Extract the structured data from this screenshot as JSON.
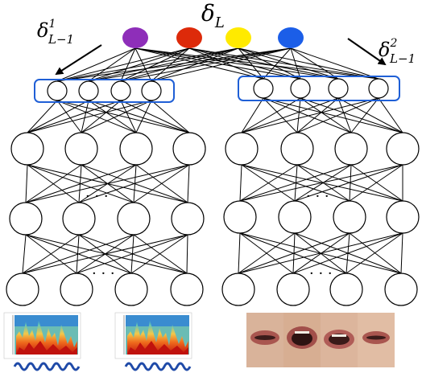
{
  "labels": {
    "delta_L": {
      "main": "δ",
      "sub": "L"
    },
    "delta_1": {
      "main": "δ",
      "sup": "1",
      "sub": "L−1"
    },
    "delta_2": {
      "main": "δ",
      "sup": "2",
      "sub": "L−1"
    }
  },
  "fusion_units": [
    {
      "color": "#8e2eb9"
    },
    {
      "color": "#dd2a0a"
    },
    {
      "color": "#ffea00"
    },
    {
      "color": "#1b5ee8"
    }
  ],
  "networks": {
    "left": {
      "bottom_input": "audio spectrogram and waveform",
      "ellipsis_mark": "· · ·"
    },
    "right": {
      "bottom_input": "video frames of mouth region",
      "ellipsis_mark": "· · ·"
    }
  },
  "highlight_color": "#1f5fd6"
}
